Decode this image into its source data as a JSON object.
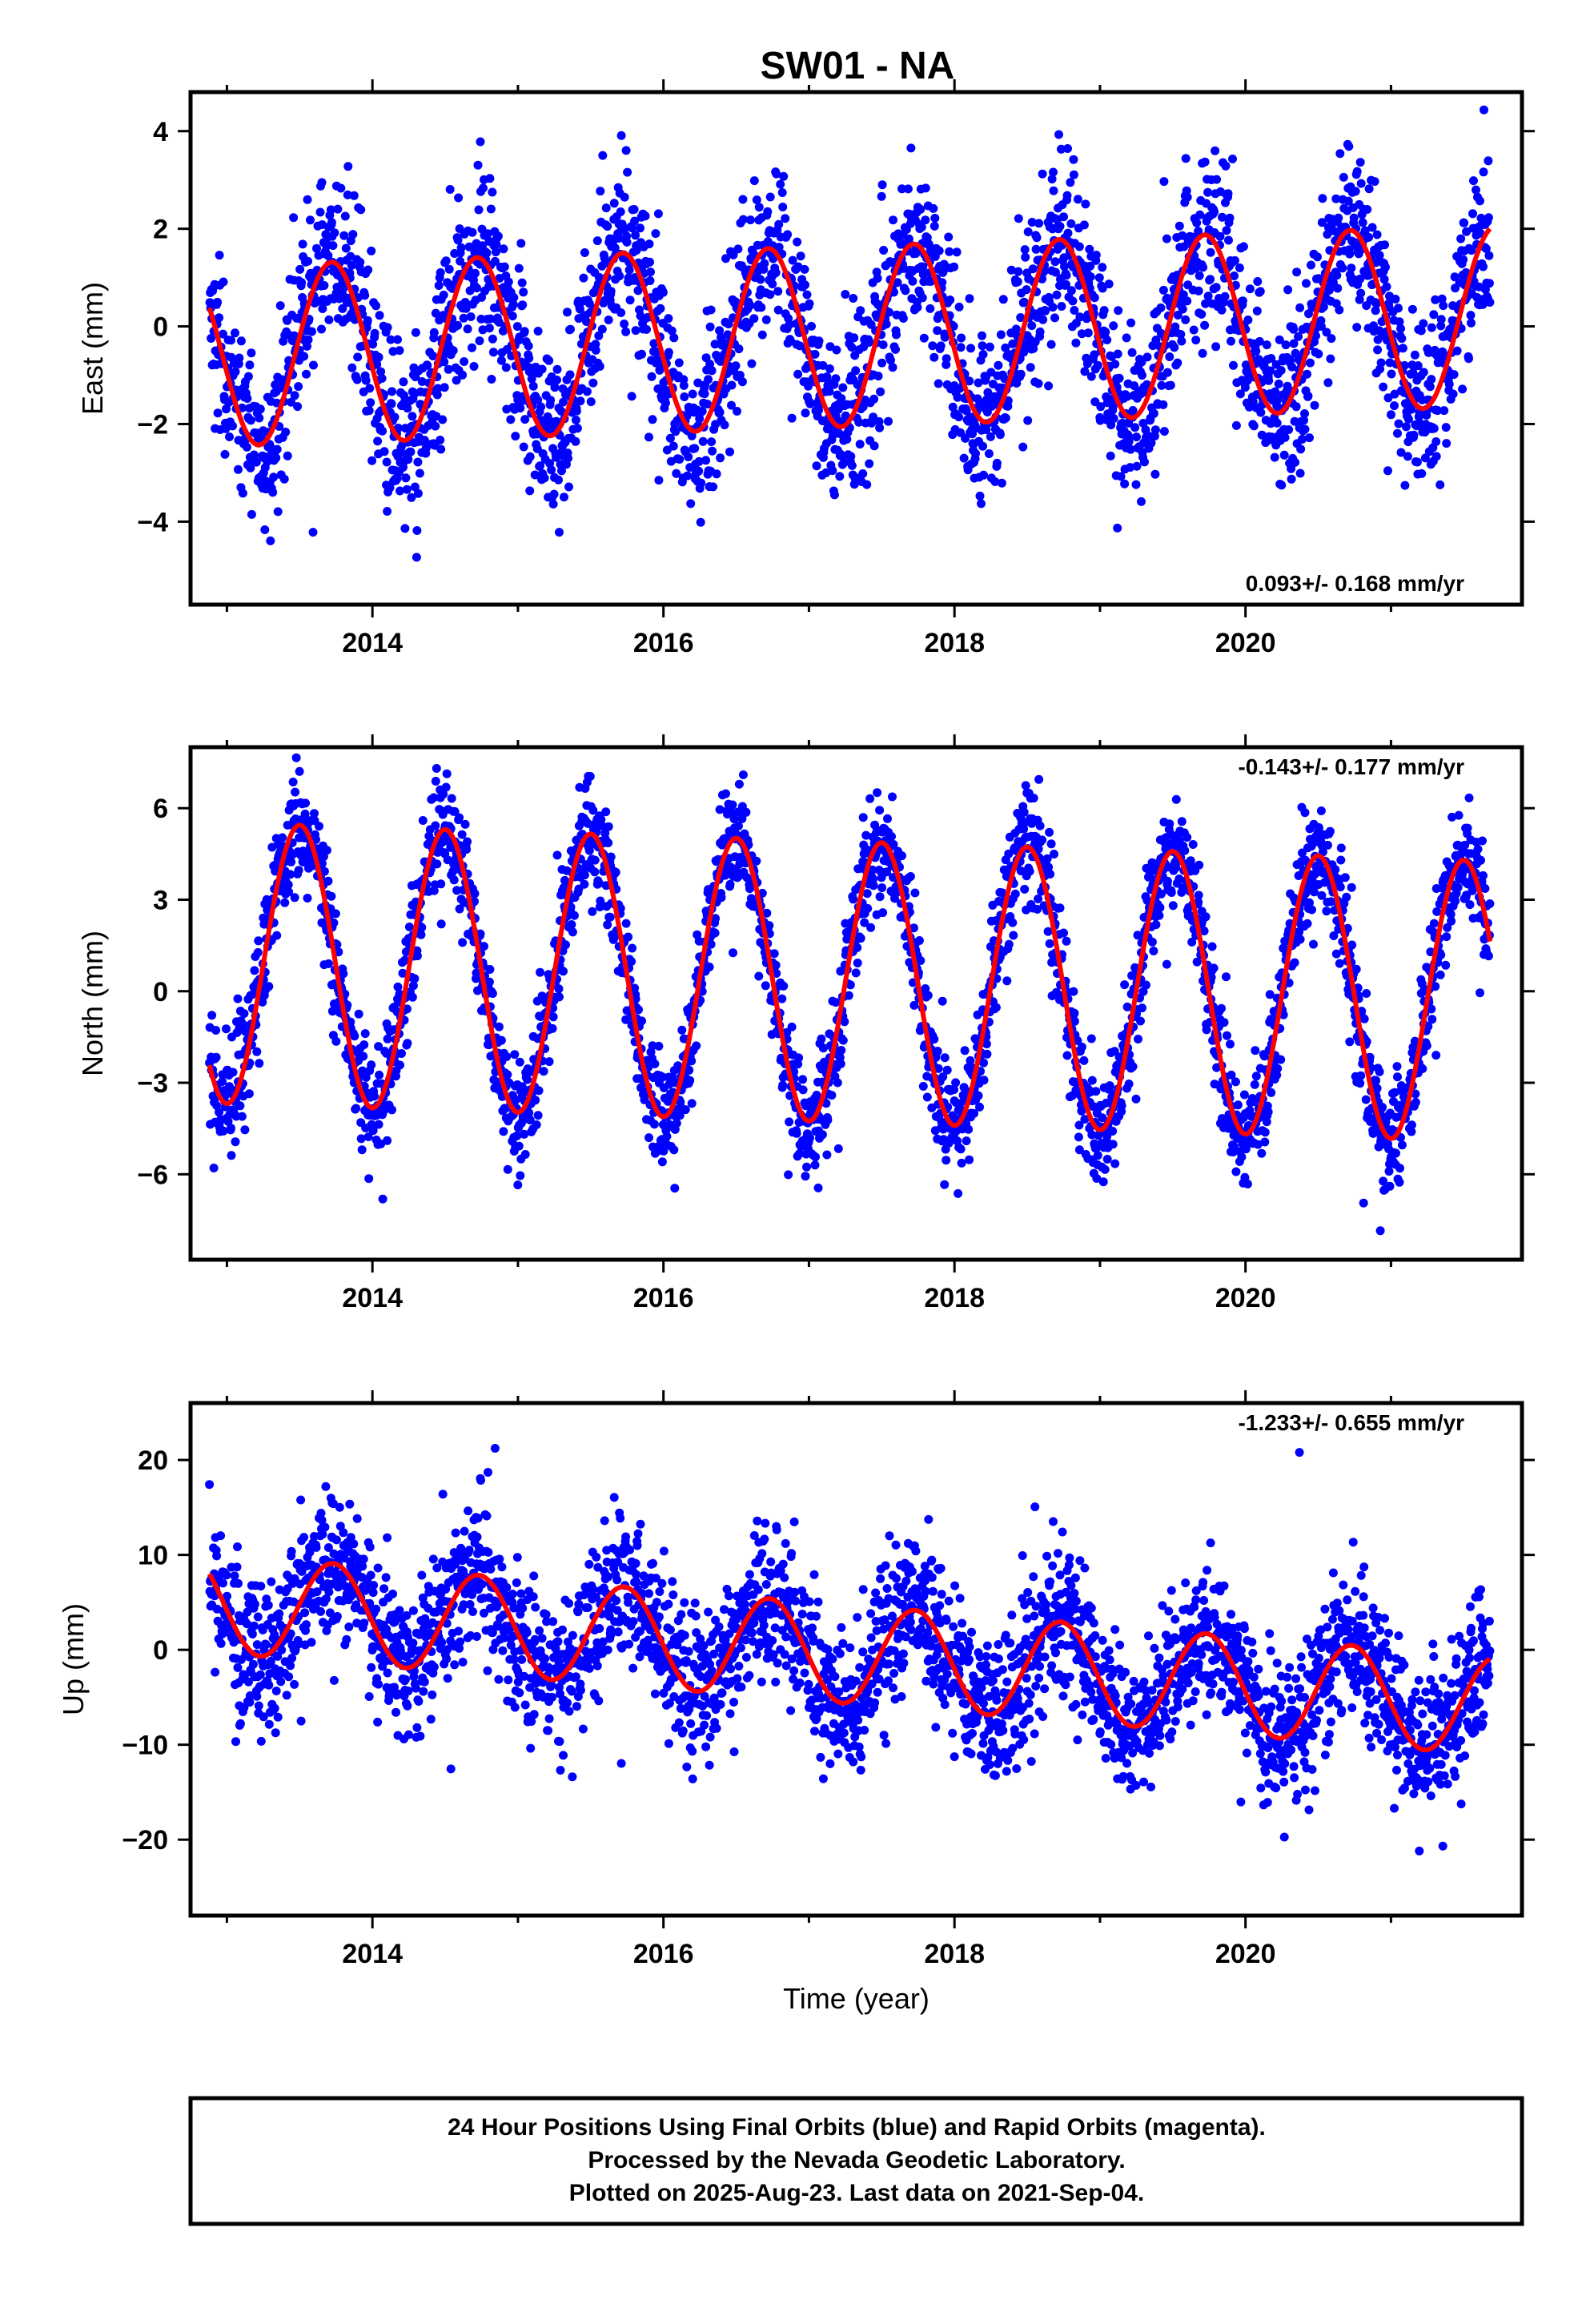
{
  "title": "SW01 - NA",
  "caption": {
    "lines": [
      "24 Hour Positions Using Final Orbits (blue) and Rapid Orbits (magenta).",
      "Processed by the Nevada Geodetic Laboratory.",
      "Plotted on 2025-Aug-23. Last data on 2021-Sep-04."
    ]
  },
  "colors": {
    "final_orbit_points": "#0000ff",
    "model_fit": "#ff0000",
    "frame": "#000000"
  },
  "chart_data": [
    {
      "type": "scatter",
      "ylabel": "East (mm)",
      "xlabel": "",
      "rate_text": "0.093+/- 0.168 mm/yr",
      "rate_position": "bottom-right",
      "xlim": [
        2012.75,
        2021.9
      ],
      "ylim": [
        -5.7,
        4.8
      ],
      "xticks": [
        2014,
        2016,
        2018,
        2020
      ],
      "yticks": [
        -4,
        -2,
        0,
        2,
        4
      ],
      "x_start": 2012.88,
      "x_end": 2021.68,
      "model": {
        "amplitude": 1.85,
        "phase_peak_year_fraction": 0.72,
        "offset": -0.2,
        "trend_mm_per_yr": 0.093,
        "ref_year": 2017.3
      },
      "scatter_std": 0.9
    },
    {
      "type": "scatter",
      "ylabel": "North (mm)",
      "xlabel": "",
      "rate_text": "-0.143+/- 0.177 mm/yr",
      "rate_position": "top-right",
      "xlim": [
        2012.75,
        2021.9
      ],
      "ylim": [
        -8.8,
        8.0
      ],
      "xticks": [
        2014,
        2016,
        2018,
        2020
      ],
      "yticks": [
        -6,
        -3,
        0,
        3,
        6
      ],
      "x_start": 2012.88,
      "x_end": 2021.68,
      "model": {
        "amplitude": 4.6,
        "phase_peak_year_fraction": 0.5,
        "offset": 0.3,
        "trend_mm_per_yr": -0.143,
        "ref_year": 2017.3
      },
      "scatter_std": 0.9
    },
    {
      "type": "scatter",
      "ylabel": "Up (mm)",
      "xlabel": "Time (year)",
      "rate_text": "-1.233+/- 0.655 mm/yr",
      "rate_position": "top-right",
      "xlim": [
        2012.75,
        2021.9
      ],
      "ylim": [
        -28,
        26
      ],
      "xticks": [
        2014,
        2016,
        2018,
        2020
      ],
      "yticks": [
        -20,
        -10,
        0,
        10,
        20
      ],
      "x_start": 2012.88,
      "x_end": 2021.68,
      "model": {
        "amplitude": 5.2,
        "phase_peak_year_fraction": 0.73,
        "offset": -0.5,
        "trend_mm_per_yr": -1.233,
        "ref_year": 2017.3
      },
      "scatter_std": 3.8
    }
  ]
}
